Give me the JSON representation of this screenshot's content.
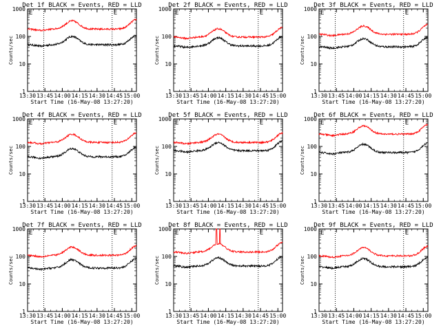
{
  "chart_data": [
    {
      "type": "line",
      "title": "Det 1f BLACK = Events, RED = LLD",
      "events_base": 50,
      "lld_base": 185
    },
    {
      "type": "line",
      "title": "Det 2f BLACK = Events, RED = LLD",
      "events_base": 45,
      "lld_base": 95
    },
    {
      "type": "line",
      "title": "Det 3f BLACK = Events, RED = LLD",
      "events_base": 42,
      "lld_base": 120
    },
    {
      "type": "line",
      "title": "Det 4f BLACK = Events, RED = LLD",
      "events_base": 42,
      "lld_base": 140
    },
    {
      "type": "line",
      "title": "Det 5f BLACK = Events, RED = LLD",
      "events_base": 70,
      "lld_base": 140
    },
    {
      "type": "line",
      "title": "Det 6f BLACK = Events, RED = LLD",
      "events_base": 60,
      "lld_base": 280
    },
    {
      "type": "line",
      "title": "Det 7f BLACK = Events, RED = LLD",
      "events_base": 38,
      "lld_base": 110
    },
    {
      "type": "line",
      "title": "Det 8f BLACK = Events, RED = LLD",
      "events_base": 45,
      "lld_base": 145,
      "spikes": [
        "14:07",
        "14:10"
      ]
    },
    {
      "type": "line",
      "title": "Det 9f BLACK = Events, RED = LLD",
      "events_base": 42,
      "lld_base": 105
    }
  ],
  "shared": {
    "xlabel": "Start Time (16-May-08 13:27:20)",
    "ylabel": "Counts/sec",
    "x_ticks": [
      "13:30",
      "13:45",
      "14:00",
      "14:15",
      "14:30",
      "14:45",
      "15:00"
    ],
    "y_ticks": [
      "1",
      "10",
      "100",
      "1000"
    ],
    "ylim": [
      1,
      1000
    ],
    "xlim": [
      "13:30",
      "15:04"
    ],
    "marker_times": [
      "13:44",
      "14:43"
    ],
    "marker_label": "E",
    "series": [
      {
        "name": "BLACK = Events",
        "color": "#000000"
      },
      {
        "name": "RED = LLD",
        "color": "#ff0000"
      }
    ]
  }
}
